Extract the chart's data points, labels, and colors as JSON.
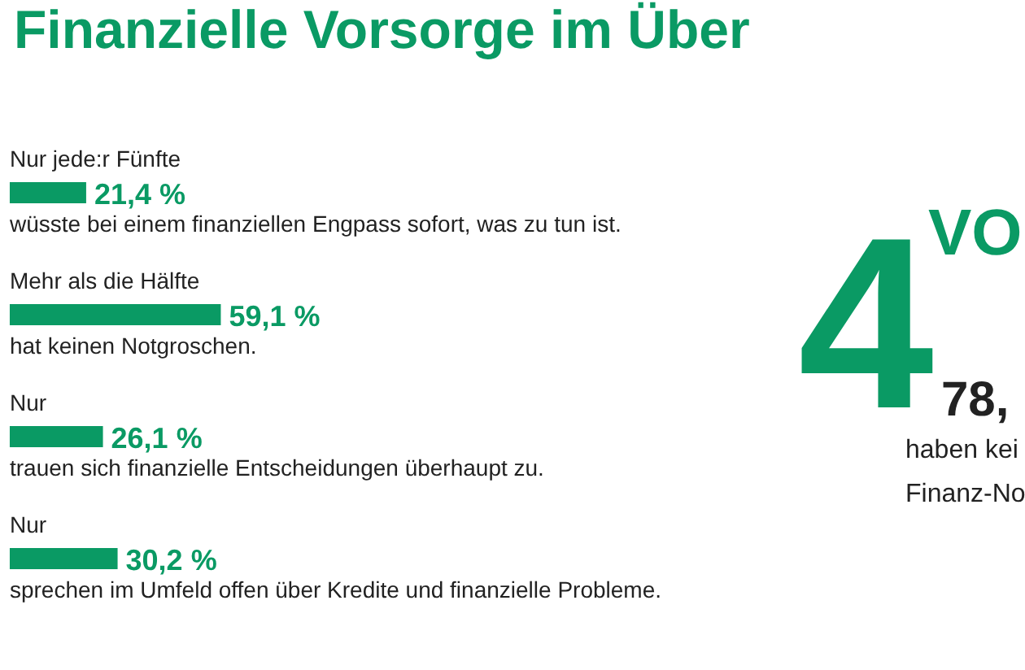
{
  "chart_data": {
    "type": "bar",
    "orientation": "horizontal",
    "relative": false,
    "title": "Finanzielle Vorsorge im Über",
    "categories": [
      "Nur jede:r Fünfte",
      "Mehr als die Hälfte",
      "Nur",
      "Nur"
    ],
    "values": [
      21.4,
      59.1,
      26.1,
      30.2
    ],
    "value_labels": [
      "21,4 %",
      "59,1 %",
      "26,1 %",
      "30,2 %"
    ],
    "color": "#0a9a64",
    "xlim": [
      -2.5,
      284.5
    ],
    "annotations": [
      "wüsste bei einem finanziellen Engpass sofort, was zu tun ist.",
      "hat keinen Notgroschen.",
      "trauen sich finanzielle Entscheidungen überhaupt zu.",
      "sprechen im Umfeld offen über Kredite und finanzielle Probleme.",
      "4",
      "VO",
      "78,",
      "haben kei",
      "Finanz-No"
    ]
  }
}
